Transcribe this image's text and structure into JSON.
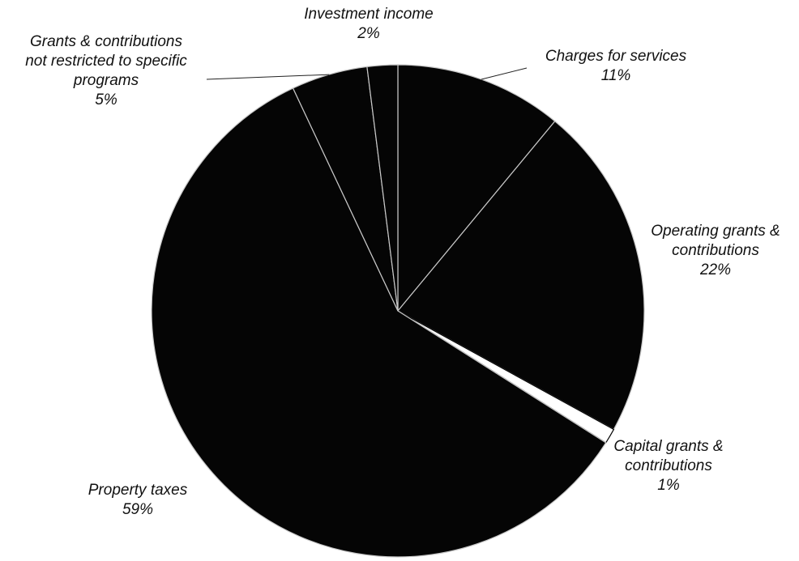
{
  "chart_data": {
    "type": "pie",
    "slices": [
      {
        "label_lines": [
          "Charges for services"
        ],
        "pct_text": "11%",
        "value": 11
      },
      {
        "label_lines": [
          "Operating grants &",
          "contributions"
        ],
        "pct_text": "22%",
        "value": 22
      },
      {
        "label_lines": [
          "Capital grants &",
          "contributions"
        ],
        "pct_text": "1%",
        "value": 1
      },
      {
        "label_lines": [
          "Property taxes"
        ],
        "pct_text": "59%",
        "value": 59
      },
      {
        "label_lines": [
          "Grants & contributions",
          "not restricted to specific",
          "programs"
        ],
        "pct_text": "5%",
        "value": 5
      },
      {
        "label_lines": [
          "Investment income"
        ],
        "pct_text": "2%",
        "value": 2
      }
    ],
    "colors": {
      "fill": "#050505",
      "capital_fill": "#ffffff",
      "separator": "#c8c8c8",
      "label_text": "#111111"
    },
    "start_angle_deg": 0,
    "direction": "clockwise",
    "legend": "none"
  }
}
